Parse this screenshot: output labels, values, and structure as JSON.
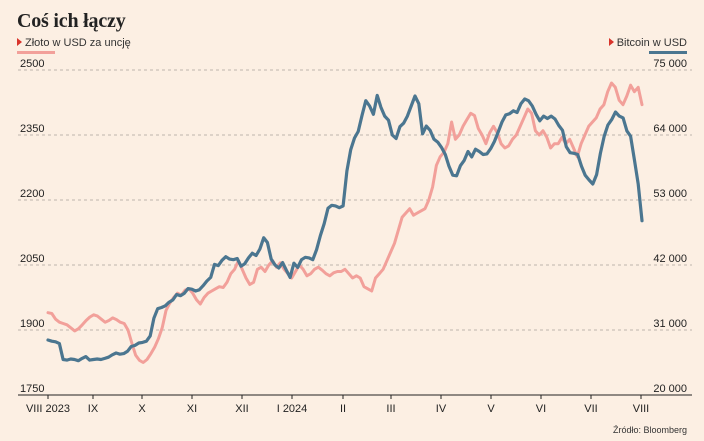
{
  "chart_data": {
    "type": "line",
    "title": "Coś ich łączy",
    "source": "Źródło: Bloomberg",
    "x_tick_labels": [
      "VIII 2023",
      "IX",
      "X",
      "XI",
      "XII",
      "I 2024",
      "II",
      "III",
      "IV",
      "V",
      "VI",
      "VII",
      "VIII"
    ],
    "left_axis": {
      "ticks": [
        "1750",
        "1900",
        "2050",
        "2200",
        "2350",
        "2500"
      ],
      "range": [
        1750,
        2500
      ]
    },
    "right_axis": {
      "ticks": [
        "20 000",
        "31 000",
        "42 000",
        "53 000",
        "64 000",
        "75 000"
      ],
      "range": [
        20000,
        75000
      ]
    },
    "grid": true,
    "series": [
      {
        "name": "Złoto w USD za uncję",
        "axis": "left",
        "color": "#f2a09a",
        "values": [
          1940,
          1938,
          1925,
          1918,
          1915,
          1912,
          1905,
          1898,
          1903,
          1912,
          1922,
          1930,
          1935,
          1932,
          1925,
          1918,
          1922,
          1928,
          1924,
          1918,
          1915,
          1900,
          1870,
          1842,
          1830,
          1825,
          1832,
          1845,
          1860,
          1880,
          1905,
          1945,
          1962,
          1975,
          1985,
          1980,
          1992,
          1995,
          1985,
          1970,
          1960,
          1975,
          1985,
          1990,
          1995,
          2000,
          1998,
          2010,
          2030,
          2040,
          2060,
          2040,
          2020,
          2005,
          2010,
          2040,
          2045,
          2035,
          2050,
          2060,
          2045,
          2055,
          2040,
          2030,
          2020,
          2035,
          2050,
          2040,
          2025,
          2030,
          2040,
          2045,
          2038,
          2030,
          2025,
          2032,
          2035,
          2035,
          2040,
          2030,
          2020,
          2025,
          2020,
          2000,
          1995,
          1990,
          2020,
          2030,
          2040,
          2060,
          2080,
          2100,
          2130,
          2160,
          2170,
          2180,
          2165,
          2170,
          2175,
          2180,
          2200,
          2230,
          2280,
          2300,
          2310,
          2330,
          2380,
          2340,
          2350,
          2370,
          2385,
          2400,
          2395,
          2365,
          2350,
          2330,
          2355,
          2370,
          2355,
          2330,
          2320,
          2325,
          2340,
          2350,
          2370,
          2390,
          2410,
          2400,
          2360,
          2350,
          2360,
          2345,
          2320,
          2330,
          2330,
          2345,
          2330,
          2340,
          2320,
          2300,
          2330,
          2350,
          2370,
          2380,
          2390,
          2410,
          2420,
          2450,
          2470,
          2460,
          2430,
          2420,
          2440,
          2465,
          2450,
          2460,
          2420
        ]
      },
      {
        "name": "Bitcoin w USD",
        "axis": "right",
        "color": "#4b7690",
        "values": [
          29300,
          29100,
          29000,
          28700,
          26000,
          25900,
          26100,
          26000,
          25800,
          26200,
          26500,
          25900,
          26000,
          26100,
          26000,
          26200,
          26400,
          26800,
          27100,
          26900,
          27000,
          27400,
          28200,
          28400,
          28800,
          28900,
          29100,
          30000,
          33000,
          34600,
          34800,
          35100,
          35700,
          36100,
          37000,
          36800,
          37200,
          38000,
          37900,
          37600,
          37800,
          38500,
          39300,
          39900,
          42100,
          41900,
          42800,
          43400,
          43000,
          42900,
          43100,
          41800,
          42200,
          43200,
          44000,
          43600,
          44700,
          46600,
          45800,
          43000,
          42000,
          41500,
          42400,
          41100,
          39900,
          42300,
          41600,
          42900,
          43300,
          43200,
          42900,
          44600,
          47000,
          49000,
          51600,
          52100,
          52000,
          51700,
          52000,
          57900,
          61500,
          63500,
          64600,
          67300,
          69800,
          68900,
          67500,
          70700,
          68700,
          67200,
          66500,
          64000,
          63400,
          65400,
          66000,
          67200,
          68900,
          70600,
          69300,
          64200,
          65500,
          64800,
          63300,
          62800,
          61900,
          60700,
          58700,
          57200,
          57100,
          58800,
          59700,
          61200,
          60300,
          61600,
          61200,
          60700,
          60800,
          61700,
          62900,
          64500,
          66200,
          67400,
          67600,
          68100,
          67800,
          69300,
          70100,
          69800,
          68900,
          67500,
          66400,
          67200,
          66800,
          67200,
          66700,
          65600,
          64800,
          62000,
          61000,
          60900,
          60700,
          58700,
          57200,
          56400,
          55700,
          57300,
          60900,
          63800,
          65700,
          66600,
          67900,
          67200,
          66900,
          64700,
          63800,
          59800,
          55700,
          49500
        ]
      }
    ]
  }
}
